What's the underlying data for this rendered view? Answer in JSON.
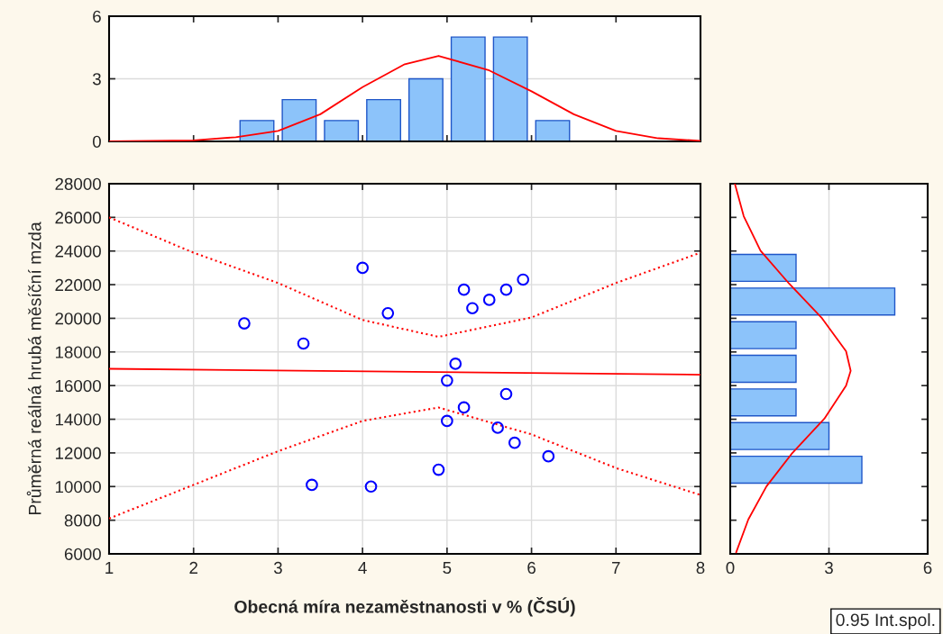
{
  "chart_data": [
    {
      "type": "histogram",
      "bins": [
        2.5,
        3.0,
        3.5,
        4.0,
        4.5,
        5.0,
        5.5,
        6.0,
        6.5
      ],
      "values": [
        1,
        2,
        1,
        2,
        3,
        5,
        5,
        1
      ],
      "color": "#8cc3fa",
      "series": [
        {
          "type": "line",
          "color": "#ff0000",
          "x": [
            1,
            2,
            2.5,
            3,
            3.5,
            4,
            4.5,
            4.9,
            5.5,
            6,
            6.5,
            7,
            7.5,
            8
          ],
          "values": [
            0,
            0.05,
            0.2,
            0.5,
            1.3,
            2.6,
            3.7,
            4.1,
            3.4,
            2.4,
            1.3,
            0.5,
            0.15,
            0.03
          ]
        }
      ],
      "xlim": [
        1,
        8
      ],
      "xticks": [
        1,
        2,
        3,
        4,
        5,
        6,
        7,
        8
      ],
      "ylim": [
        0,
        6
      ],
      "yticks": [
        0,
        3,
        6
      ],
      "grid": "y",
      "tick_labels": "y"
    },
    {
      "type": "scatter",
      "xlabel": "Obecná míra nezaměstnanosti v % (ČSÚ)",
      "ylabel": "Průměrná reálná hrubá měsíční mzda",
      "series": [
        {
          "type": "scatter",
          "color": "#0000ff",
          "marker": "circle",
          "x": [
            2.6,
            3.3,
            3.4,
            4.0,
            4.1,
            4.3,
            4.9,
            5.0,
            5.0,
            5.1,
            5.2,
            5.2,
            5.3,
            5.5,
            5.6,
            5.7,
            5.7,
            5.8,
            5.9,
            6.2
          ],
          "values": [
            19700,
            18500,
            10100,
            23000,
            10000,
            20300,
            11000,
            16300,
            13900,
            17300,
            21700,
            14700,
            20600,
            21100,
            13500,
            21700,
            15500,
            12600,
            22300,
            11800
          ]
        },
        {
          "type": "line",
          "color": "#ff0000",
          "line_style": "solid",
          "x": [
            1,
            8
          ],
          "values": [
            17000,
            16650
          ]
        },
        {
          "type": "line",
          "color": "#ff0000",
          "line_style": "dotted",
          "x": [
            1,
            2,
            3,
            4,
            4.9,
            6,
            7,
            8
          ],
          "values": [
            26000,
            23900,
            22100,
            19900,
            18900,
            20050,
            22100,
            23900
          ]
        },
        {
          "type": "line",
          "color": "#ff0000",
          "line_style": "dotted",
          "x": [
            1,
            2,
            3,
            4,
            4.9,
            6,
            7,
            8
          ],
          "values": [
            8100,
            10100,
            12100,
            13900,
            14700,
            13100,
            11100,
            9500
          ]
        }
      ],
      "xlim": [
        1,
        8
      ],
      "xticks": [
        1,
        2,
        3,
        4,
        5,
        6,
        7,
        8
      ],
      "ylim": [
        6000,
        28000
      ],
      "yticks": [
        6000,
        8000,
        10000,
        12000,
        14000,
        16000,
        18000,
        20000,
        22000,
        24000,
        26000,
        28000
      ],
      "grid": true,
      "annotations": [
        "0.95 Int.spol."
      ]
    },
    {
      "type": "histogram",
      "orientation": "horizontal",
      "bins": [
        10000,
        12000,
        14000,
        16000,
        18000,
        20000,
        22000,
        24000
      ],
      "values": [
        4,
        3,
        2,
        2,
        2,
        5,
        2
      ],
      "color": "#8cc3fa",
      "series": [
        {
          "type": "line",
          "color": "#ff0000",
          "x": [
            28000,
            26070,
            24020,
            22060,
            20000,
            18040,
            16880,
            16000,
            14030,
            11980,
            10010,
            8050,
            6090
          ],
          "values": [
            0.14,
            0.41,
            0.92,
            1.79,
            2.79,
            3.52,
            3.66,
            3.52,
            2.86,
            1.88,
            1.1,
            0.55,
            0.18
          ]
        }
      ],
      "xlim": [
        0,
        6
      ],
      "xticks": [
        0,
        3,
        6
      ],
      "ylim": [
        6000,
        28000
      ],
      "yticks": [
        6000,
        8000,
        10000,
        12000,
        14000,
        16000,
        18000,
        20000,
        22000,
        24000,
        26000,
        28000
      ],
      "grid": "x",
      "tick_labels": "x"
    }
  ]
}
